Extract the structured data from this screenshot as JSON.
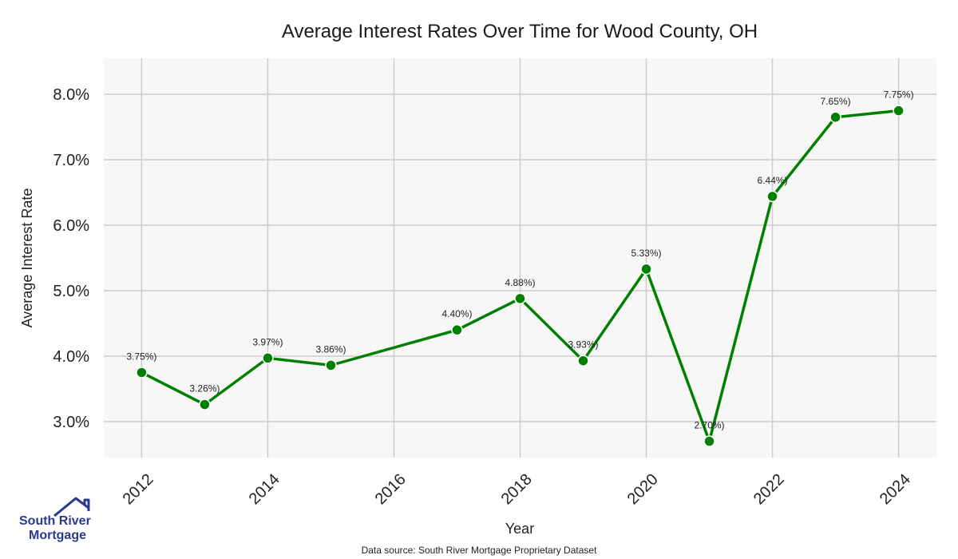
{
  "chart_data": {
    "type": "line",
    "title": "Average Interest Rates Over Time for Wood County, OH",
    "xlabel": "Year",
    "ylabel": "Average Interest Rate",
    "x": [
      2012,
      2013,
      2014,
      2015,
      2017,
      2018,
      2019,
      2020,
      2021,
      2022,
      2023,
      2024
    ],
    "series": [
      {
        "values": [
          3.75,
          3.26,
          3.97,
          3.86,
          4.4,
          4.88,
          3.93,
          5.33,
          2.7,
          6.44,
          7.65,
          7.75
        ]
      }
    ],
    "data_labels": [
      "3.75%)",
      "3.26%)",
      "3.97%)",
      "3.86%)",
      "4.40%)",
      "4.88%)",
      "3.93%)",
      "5.33%)",
      "2.70%)",
      "6.44%)",
      "7.65%)",
      "7.75%)"
    ],
    "xticks": [
      2012,
      2014,
      2016,
      2018,
      2020,
      2022,
      2024
    ],
    "xtick_labels": [
      "2012",
      "2014",
      "2016",
      "2018",
      "2020",
      "2022",
      "2024"
    ],
    "yticks": [
      3.0,
      4.0,
      5.0,
      6.0,
      7.0,
      8.0
    ],
    "ytick_labels": [
      "3.0%",
      "4.0%",
      "5.0%",
      "6.0%",
      "7.0%",
      "8.0%"
    ],
    "xlim": [
      2011.4,
      2024.6
    ],
    "ylim": [
      2.45,
      8.55
    ],
    "grid": true,
    "line_color": "#008000",
    "background_color": "#f7f7f7",
    "grid_color": "#cccccc"
  },
  "footer": {
    "source": "Data source: South River Mortgage Proprietary Dataset"
  },
  "logo": {
    "line1": "South River",
    "line2": "Mortgage",
    "color": "#2b3a8c"
  }
}
